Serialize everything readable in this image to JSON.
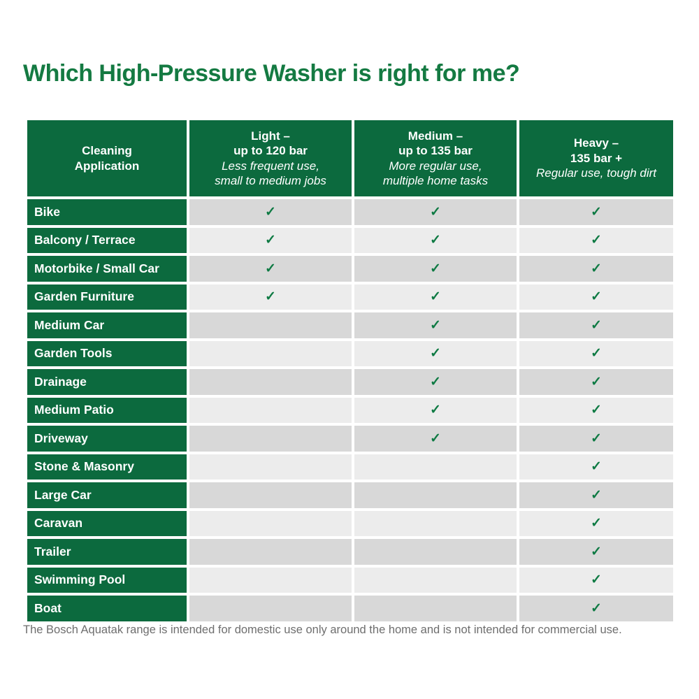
{
  "page": {
    "title": "Which High-Pressure Washer is right for me?",
    "footnote": "The Bosch Aquatak range is intended for domestic use only around the home and is not intended for commercial use."
  },
  "colors": {
    "title_green": "#147a42",
    "header_green": "#0c6a3e",
    "row_dark_gray": "#d8d8d8",
    "row_light_gray": "#ececec",
    "check_green": "#0e7a43",
    "footnote_gray": "#6e6e6e"
  },
  "table": {
    "check_glyph": "✓",
    "columns": [
      {
        "title_lines": [
          "Cleaning",
          "Application"
        ],
        "subtitle_lines": []
      },
      {
        "title_lines": [
          "Light –",
          "up to 120 bar"
        ],
        "subtitle_lines": [
          "Less frequent use,",
          "small to medium jobs"
        ]
      },
      {
        "title_lines": [
          "Medium –",
          "up to 135 bar"
        ],
        "subtitle_lines": [
          "More regular use,",
          "multiple home tasks"
        ]
      },
      {
        "title_lines": [
          "Heavy –",
          "135 bar +"
        ],
        "subtitle_lines": [
          "Regular use, tough dirt"
        ]
      }
    ],
    "rows": [
      {
        "label": "Bike",
        "light": true,
        "medium": true,
        "heavy": true
      },
      {
        "label": "Balcony / Terrace",
        "light": true,
        "medium": true,
        "heavy": true
      },
      {
        "label": "Motorbike / Small Car",
        "light": true,
        "medium": true,
        "heavy": true
      },
      {
        "label": "Garden Furniture",
        "light": true,
        "medium": true,
        "heavy": true
      },
      {
        "label": "Medium Car",
        "light": false,
        "medium": true,
        "heavy": true
      },
      {
        "label": "Garden Tools",
        "light": false,
        "medium": true,
        "heavy": true
      },
      {
        "label": "Drainage",
        "light": false,
        "medium": true,
        "heavy": true
      },
      {
        "label": "Medium Patio",
        "light": false,
        "medium": true,
        "heavy": true
      },
      {
        "label": "Driveway",
        "light": false,
        "medium": true,
        "heavy": true
      },
      {
        "label": "Stone & Masonry",
        "light": false,
        "medium": false,
        "heavy": true
      },
      {
        "label": "Large Car",
        "light": false,
        "medium": false,
        "heavy": true
      },
      {
        "label": "Caravan",
        "light": false,
        "medium": false,
        "heavy": true
      },
      {
        "label": "Trailer",
        "light": false,
        "medium": false,
        "heavy": true
      },
      {
        "label": "Swimming Pool",
        "light": false,
        "medium": false,
        "heavy": true
      },
      {
        "label": "Boat",
        "light": false,
        "medium": false,
        "heavy": true
      }
    ]
  }
}
